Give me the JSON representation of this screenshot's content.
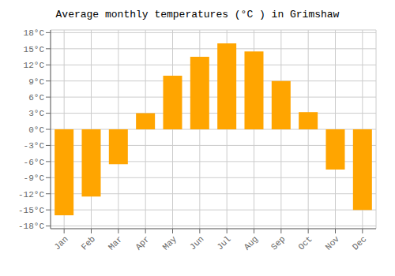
{
  "chart_data": {
    "type": "bar",
    "title": "Average monthly temperatures (°C ) in Grimshaw",
    "categories": [
      "Jan",
      "Feb",
      "Mar",
      "Apr",
      "May",
      "Jun",
      "Jul",
      "Aug",
      "Sep",
      "Oct",
      "Nov",
      "Dec"
    ],
    "values": [
      -16,
      -12.5,
      -6.5,
      3,
      10,
      13.5,
      16,
      14.5,
      9,
      3.2,
      -7.5,
      -15
    ],
    "color": "#FFA500",
    "ylim": [
      -18.5,
      18.5
    ],
    "yticks": [
      {
        "value": -18,
        "label": "-18°C"
      },
      {
        "value": -15,
        "label": "-15°C"
      },
      {
        "value": -12,
        "label": "-12°C"
      },
      {
        "value": -9,
        "label": "-9°C"
      },
      {
        "value": -6,
        "label": "-6°C"
      },
      {
        "value": -3,
        "label": "-3°C"
      },
      {
        "value": 0,
        "label": "0°C"
      },
      {
        "value": 3,
        "label": "3°C"
      },
      {
        "value": 6,
        "label": "6°C"
      },
      {
        "value": 9,
        "label": "9°C"
      },
      {
        "value": 12,
        "label": "12°C"
      },
      {
        "value": 15,
        "label": "15°C"
      },
      {
        "value": 18,
        "label": "18°C"
      }
    ],
    "grid": true
  }
}
